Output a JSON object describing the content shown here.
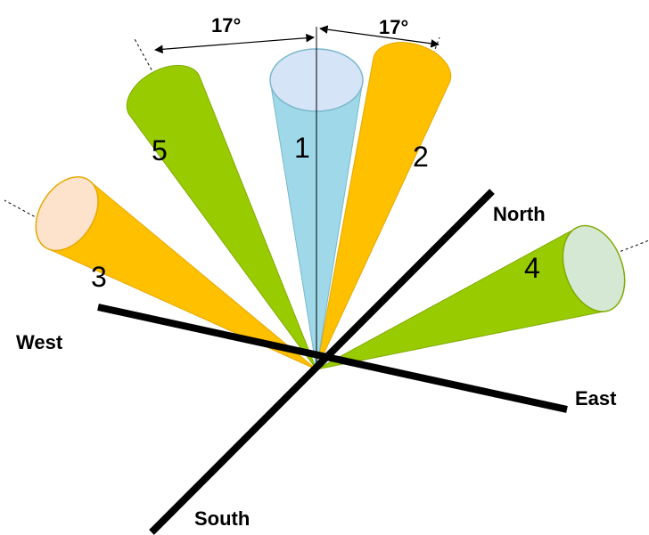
{
  "angle_labels": [
    "17°",
    "17°"
  ],
  "cones": [
    {
      "label": "1"
    },
    {
      "label": "2"
    },
    {
      "label": "3"
    },
    {
      "label": "4"
    },
    {
      "label": "5"
    }
  ],
  "directions": {
    "north": "North",
    "south": "South",
    "east": "East",
    "west": "West"
  }
}
